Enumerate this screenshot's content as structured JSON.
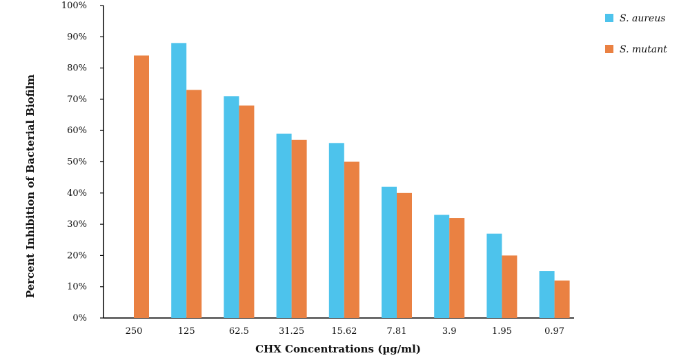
{
  "chart_data": {
    "type": "bar",
    "categories": [
      "250",
      "125",
      "62.5",
      "31.25",
      "15.62",
      "7.81",
      "3.9",
      "1.95",
      "0.97"
    ],
    "series": [
      {
        "name": "S. aureus",
        "color": "#4dc3ec",
        "values": [
          null,
          88,
          71,
          59,
          56,
          42,
          33,
          27,
          15
        ]
      },
      {
        "name": "S. mutant",
        "color": "#ea8142",
        "values": [
          84,
          73,
          68,
          57,
          50,
          40,
          32,
          20,
          12
        ]
      }
    ],
    "xlabel": "CHX Concentrations (µg/ml)",
    "ylabel": "Percent Inhibition of Bacterial Biofilm",
    "ylim": [
      0,
      100
    ],
    "yticks": [
      "0%",
      "10%",
      "20%",
      "30%",
      "40%",
      "50%",
      "60%",
      "70%",
      "80%",
      "90%",
      "100%"
    ],
    "legend_position": "top-right",
    "grid": false
  }
}
